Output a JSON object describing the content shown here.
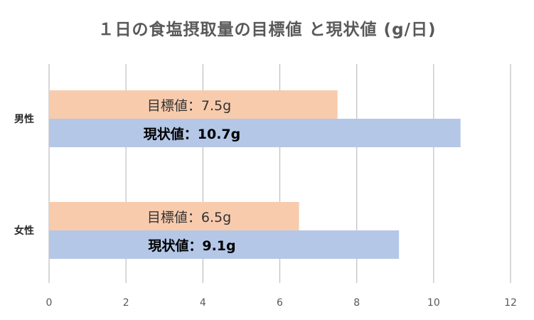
{
  "chart_data": {
    "type": "bar",
    "orientation": "horizontal",
    "title": "１日の食塩摂取量の目標値 と現状値 (g/日)",
    "categories": [
      "男性",
      "女性"
    ],
    "series": [
      {
        "key": "target",
        "color": "#f8cbad",
        "values": [
          7.5,
          6.5
        ],
        "labels": [
          "目標値：7.5g",
          "目標値：6.5g"
        ]
      },
      {
        "key": "current",
        "color": "#b4c7e7",
        "values": [
          10.7,
          9.1
        ],
        "labels": [
          "現状値：10.7g",
          "現状値：9.1g"
        ]
      }
    ],
    "xlim": [
      0,
      12
    ],
    "xticks": [
      0,
      2,
      4,
      6,
      8,
      10,
      12
    ],
    "grid": "vertical",
    "gridline_color": "#bfbfbf"
  }
}
